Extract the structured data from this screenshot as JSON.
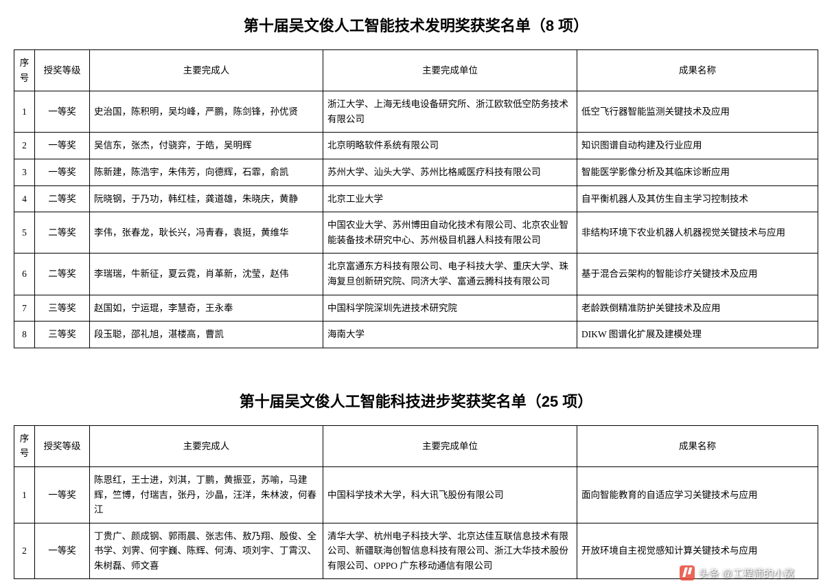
{
  "section1": {
    "title": "第十届吴文俊人工智能技术发明奖获奖名单（8 项）",
    "headers": {
      "idx": "序号",
      "level": "授奖等级",
      "people": "主要完成人",
      "unit": "主要完成单位",
      "result": "成果名称"
    },
    "rows": [
      {
        "idx": "1",
        "level": "一等奖",
        "people": "史治国，陈积明，吴均峰，严鹏，陈剑锋，孙优贤",
        "unit": "浙江大学、上海无线电设备研究所、浙江欧软低空防务技术有限公司",
        "result": "低空飞行器智能监测关键技术及应用"
      },
      {
        "idx": "2",
        "level": "一等奖",
        "people": "吴信东，张杰，付骁弈，于皓，吴明辉",
        "unit": "北京明略软件系统有限公司",
        "result": "知识图谱自动构建及行业应用"
      },
      {
        "idx": "3",
        "level": "一等奖",
        "people": "陈新建，陈浩宇，朱伟芳，向德辉，石霏，俞凯",
        "unit": "苏州大学、汕头大学、苏州比格威医疗科技有限公司",
        "result": "智能医学影像分析及其临床诊断应用"
      },
      {
        "idx": "4",
        "level": "二等奖",
        "people": "阮晓钢，于乃功，韩红桂，龚道雄，朱晓庆，黄静",
        "unit": "北京工业大学",
        "result": "自平衡机器人及其仿生自主学习控制技术"
      },
      {
        "idx": "5",
        "level": "二等奖",
        "people": "李伟，张春龙，耿长兴，冯青春，袁挺，黄维华",
        "unit": "中国农业大学、苏州博田自动化技术有限公司、北京农业智能装备技术研究中心、苏州极目机器人科技有限公司",
        "result": "非结构环境下农业机器人机器视觉关键技术与应用"
      },
      {
        "idx": "6",
        "level": "二等奖",
        "people": "李瑞瑞，牛新征，夏云霓，肖革新，沈莹，赵伟",
        "unit": "北京富通东方科技有限公司、电子科技大学、重庆大学、珠海复旦创新研究院、同济大学、富通云腾科技有限公司",
        "result": "基于混合云架构的智能诊疗关键技术及应用"
      },
      {
        "idx": "7",
        "level": "三等奖",
        "people": "赵国如，宁运琨，李慧奇，王永奉",
        "unit": "中国科学院深圳先进技术研究院",
        "result": "老龄跌倒精准防护关键技术及应用"
      },
      {
        "idx": "8",
        "level": "三等奖",
        "people": "段玉聪，邵礼旭，湛楼高，曹凯",
        "unit": "海南大学",
        "result": "DIKW 图谱化扩展及建模处理"
      }
    ]
  },
  "section2": {
    "title": "第十届吴文俊人工智能科技进步奖获奖名单（25 项）",
    "headers": {
      "idx": "序号",
      "level": "授奖等级",
      "people": "主要完成人",
      "unit": "主要完成单位",
      "result": "成果名称"
    },
    "rows": [
      {
        "idx": "1",
        "level": "一等奖",
        "people": "陈恩红，王士进，刘淇，丁鹏，黄振亚，苏喻，马建辉，竺博，付瑞吉，张丹，沙晶，汪洋，朱林波，何春江",
        "unit": "中国科学技术大学，科大讯飞股份有限公司",
        "result": "面向智能教育的自适应学习关键技术与应用"
      },
      {
        "idx": "2",
        "level": "一等奖",
        "people": "丁贵广、颜成钢、郭雨晨、张志伟、敖乃翔、殷俊、全书学、刘霁、何宇巍、陈辉、何涛、项刘宇、丁霄汉、朱树磊、师文喜",
        "unit": "清华大学、杭州电子科技大学、北京达佳互联信息技术有限公司、新疆联海创智信息科技有限公司、浙江大华技术股份有限公司、OPPO 广东移动通信有限公司",
        "result": "开放环境自主视觉感知计算关键技术与应用"
      }
    ]
  },
  "watermark": "头条 @工程师的小窝"
}
